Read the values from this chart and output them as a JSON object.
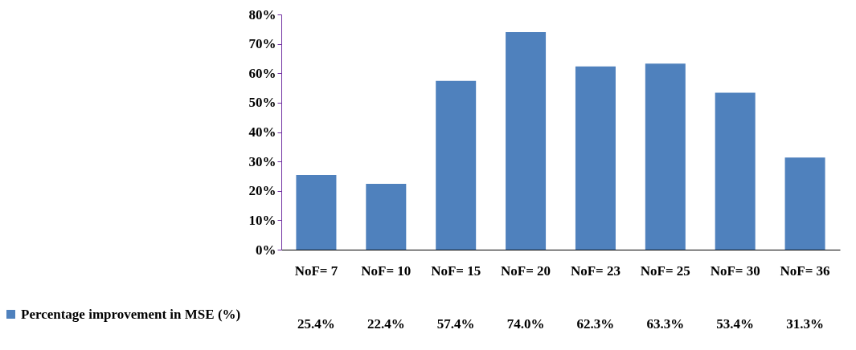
{
  "chart_data": {
    "type": "bar",
    "categories": [
      "NoF= 7",
      "NoF= 10",
      "NoF= 15",
      "NoF= 20",
      "NoF= 23",
      "NoF= 25",
      "NoF= 30",
      "NoF= 36"
    ],
    "series": [
      {
        "name": "Percentage improvement in MSE  (%)",
        "color": "#4f81bd",
        "values": [
          25.4,
          22.4,
          57.4,
          74.0,
          62.3,
          63.3,
          53.4,
          31.3
        ],
        "value_labels": [
          "25.4%",
          "22.4%",
          "57.4%",
          "74.0%",
          "62.3%",
          "63.3%",
          "53.4%",
          "31.3%"
        ]
      }
    ],
    "ylim": [
      0,
      80
    ],
    "yticks": [
      {
        "value": 0,
        "label": "0%"
      },
      {
        "value": 10,
        "label": "10%"
      },
      {
        "value": 20,
        "label": "20%"
      },
      {
        "value": 30,
        "label": "30%"
      },
      {
        "value": 40,
        "label": "40%"
      },
      {
        "value": 50,
        "label": "50%"
      },
      {
        "value": 60,
        "label": "60%"
      },
      {
        "value": 70,
        "label": "70%"
      },
      {
        "value": 80,
        "label": "80%"
      }
    ],
    "grid": false,
    "legend": "bottom left"
  }
}
